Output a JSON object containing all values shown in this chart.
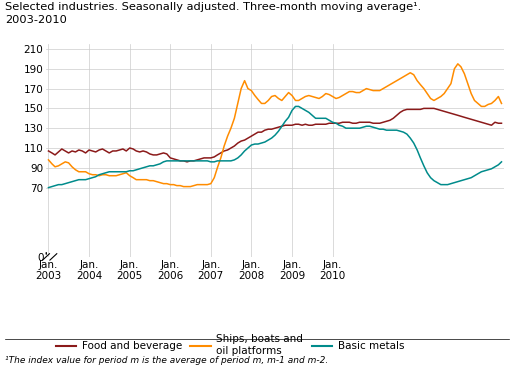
{
  "title_line1": "Selected industries. Seasonally adjusted. Three-month moving average¹.",
  "title_line2": "2003-2010",
  "footnote": "¹The index value for period m is the average of period m, m-1 and m-2.",
  "ylim": [
    0,
    215
  ],
  "yticks": [
    0,
    70,
    90,
    110,
    130,
    150,
    170,
    190,
    210
  ],
  "background_color": "#ffffff",
  "grid_color": "#cccccc",
  "food_color": "#8b1a1a",
  "ships_color": "#ff8c00",
  "metals_color": "#008b8b",
  "food_label": "Food and beverage",
  "ships_label": "Ships, boats and\noil platforms",
  "metals_label": "Basic metals",
  "food": [
    107,
    105,
    103,
    106,
    109,
    107,
    105,
    107,
    106,
    108,
    107,
    105,
    108,
    107,
    106,
    108,
    109,
    107,
    105,
    107,
    107,
    108,
    109,
    107,
    110,
    109,
    107,
    106,
    107,
    106,
    104,
    103,
    103,
    104,
    105,
    104,
    100,
    99,
    98,
    97,
    97,
    96,
    97,
    97,
    98,
    99,
    100,
    100,
    100,
    101,
    103,
    105,
    107,
    108,
    110,
    112,
    115,
    117,
    118,
    120,
    122,
    124,
    126,
    126,
    128,
    129,
    129,
    130,
    131,
    132,
    133,
    133,
    133,
    134,
    134,
    133,
    134,
    133,
    133,
    134,
    134,
    134,
    134,
    135,
    135,
    135,
    135,
    136,
    136,
    136,
    135,
    135,
    136,
    136,
    136,
    136,
    135,
    135,
    135,
    136,
    137,
    138,
    140,
    143,
    146,
    148,
    149,
    149,
    149,
    149,
    149,
    150,
    150,
    150,
    150,
    149,
    148,
    147,
    146,
    145,
    144,
    143,
    142,
    141,
    140,
    139,
    138,
    137,
    136,
    135,
    134,
    133,
    136,
    135,
    135
  ],
  "ships": [
    98,
    94,
    91,
    92,
    94,
    96,
    95,
    91,
    88,
    86,
    86,
    86,
    84,
    83,
    83,
    82,
    83,
    83,
    82,
    82,
    82,
    83,
    84,
    85,
    82,
    80,
    78,
    78,
    78,
    78,
    77,
    77,
    76,
    75,
    74,
    74,
    73,
    73,
    72,
    72,
    71,
    71,
    71,
    72,
    73,
    73,
    73,
    73,
    74,
    80,
    90,
    100,
    112,
    122,
    130,
    140,
    155,
    170,
    178,
    170,
    168,
    163,
    159,
    155,
    155,
    158,
    162,
    163,
    160,
    158,
    162,
    166,
    163,
    158,
    158,
    160,
    162,
    163,
    162,
    161,
    160,
    162,
    165,
    164,
    162,
    160,
    161,
    163,
    165,
    167,
    167,
    166,
    166,
    168,
    170,
    169,
    168,
    168,
    168,
    170,
    172,
    174,
    176,
    178,
    180,
    182,
    184,
    186,
    184,
    178,
    174,
    170,
    165,
    160,
    158,
    160,
    162,
    165,
    170,
    175,
    190,
    195,
    192,
    185,
    175,
    165,
    158,
    155,
    152,
    152,
    154,
    155,
    158,
    162,
    155
  ],
  "metals": [
    70,
    71,
    72,
    73,
    73,
    74,
    75,
    76,
    77,
    78,
    78,
    78,
    79,
    80,
    81,
    83,
    84,
    85,
    86,
    86,
    86,
    86,
    86,
    86,
    87,
    87,
    88,
    89,
    90,
    91,
    92,
    92,
    93,
    94,
    96,
    97,
    97,
    97,
    97,
    97,
    97,
    97,
    97,
    97,
    97,
    97,
    97,
    97,
    96,
    96,
    97,
    97,
    97,
    97,
    97,
    98,
    100,
    103,
    107,
    110,
    113,
    114,
    114,
    115,
    116,
    118,
    120,
    123,
    127,
    132,
    137,
    141,
    148,
    152,
    152,
    150,
    148,
    146,
    143,
    140,
    140,
    140,
    140,
    138,
    136,
    135,
    133,
    132,
    130,
    130,
    130,
    130,
    130,
    131,
    132,
    132,
    131,
    130,
    129,
    129,
    128,
    128,
    128,
    128,
    127,
    126,
    124,
    120,
    115,
    108,
    100,
    92,
    85,
    80,
    77,
    75,
    73,
    73,
    73,
    74,
    75,
    76,
    77,
    78,
    79,
    80,
    82,
    84,
    86,
    87,
    88,
    89,
    91,
    93,
    96
  ]
}
